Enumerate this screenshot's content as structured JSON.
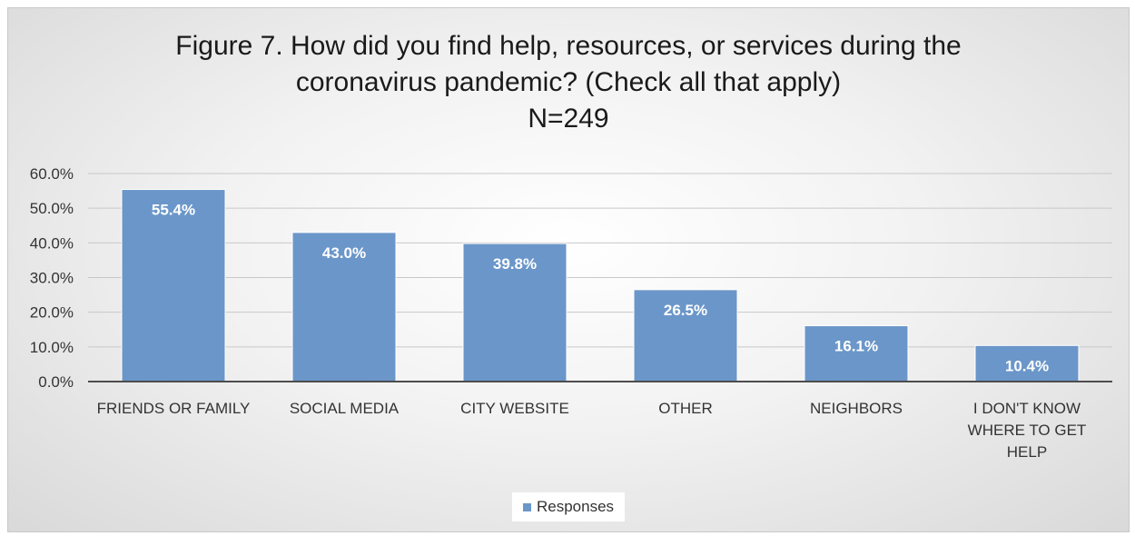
{
  "chart_data": {
    "type": "bar",
    "title_lines": [
      "Figure 7. How did you find help, resources, or services during the",
      "coronavirus pandemic? (Check all that apply)",
      "N=249"
    ],
    "categories": [
      [
        "FRIENDS OR FAMILY"
      ],
      [
        "SOCIAL MEDIA"
      ],
      [
        "CITY WEBSITE"
      ],
      [
        "OTHER"
      ],
      [
        "NEIGHBORS"
      ],
      [
        "I DON'T KNOW",
        "WHERE TO GET",
        "HELP"
      ]
    ],
    "series": [
      {
        "name": "Responses",
        "values": [
          55.4,
          43.0,
          39.8,
          26.5,
          16.1,
          10.4
        ],
        "labels": [
          "55.4%",
          "43.0%",
          "39.8%",
          "26.5%",
          "16.1%",
          "10.4%"
        ]
      }
    ],
    "ylim": [
      0,
      60
    ],
    "yticks": [
      "0.0%",
      "10.0%",
      "20.0%",
      "30.0%",
      "40.0%",
      "50.0%",
      "60.0%"
    ],
    "grid": true,
    "legend_position": "bottom",
    "colors": {
      "bar": "#6b96c9",
      "bar_edge": "#ffffff",
      "grid": "#c8c8c8",
      "axis": "#4d4d4d",
      "label_inside": "#ffffff",
      "tick_text": "#333333"
    }
  }
}
